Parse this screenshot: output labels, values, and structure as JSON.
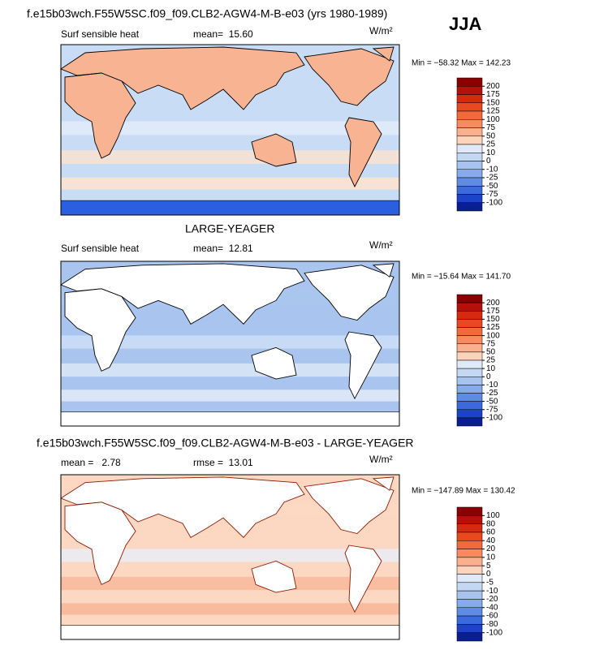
{
  "header": {
    "season": "JJA"
  },
  "panels": [
    {
      "title": "f.e15b03wch.F55W5SC.f09_f09.CLB2-AGW4-M-B-e03 (yrs 1980-1989)",
      "variable": "Surf sensible heat",
      "stat1": "mean=  15.60",
      "units": "W/m²",
      "range": "Min = −58.32 Max = 142.23",
      "levels": [
        200,
        175,
        150,
        125,
        100,
        75,
        50,
        25,
        10,
        0,
        -10,
        -25,
        -50,
        -75,
        -100
      ],
      "colors": [
        "#8b0000",
        "#b5100a",
        "#d42a12",
        "#e8491f",
        "#f26a3c",
        "#f78b60",
        "#fab08c",
        "#fdd3ba",
        "#dfe9f8",
        "#c5d8f3",
        "#a8c4ee",
        "#86aaea",
        "#5f8be5",
        "#3a6add",
        "#1c43c8",
        "#0a1f8f"
      ]
    },
    {
      "title": "LARGE-YEAGER",
      "variable": "Surf sensible heat",
      "stat1": "mean=  12.81",
      "units": "W/m²",
      "range": "Min = −15.64 Max = 141.70",
      "levels": [
        200,
        175,
        150,
        125,
        100,
        75,
        50,
        25,
        10,
        0,
        -10,
        -25,
        -50,
        -75,
        -100
      ],
      "colors": [
        "#8b0000",
        "#b5100a",
        "#d42a12",
        "#e8491f",
        "#f26a3c",
        "#f78b60",
        "#fab08c",
        "#fdd3ba",
        "#dfe9f8",
        "#c5d8f3",
        "#a8c4ee",
        "#86aaea",
        "#5f8be5",
        "#3a6add",
        "#1c43c8",
        "#0a1f8f"
      ]
    },
    {
      "title": "f.e15b03wch.F55W5SC.f09_f09.CLB2-AGW4-M-B-e03 - LARGE-YEAGER",
      "stat1": "mean =   2.78",
      "stat2": "rmse =  13.01",
      "units": "W/m²",
      "range": "Min = −147.89 Max = 130.42",
      "levels": [
        100,
        80,
        60,
        40,
        20,
        10,
        5,
        0,
        -5,
        -10,
        -20,
        -40,
        -60,
        -80,
        -100
      ],
      "colors": [
        "#8b0000",
        "#b5100a",
        "#d42a12",
        "#e8491f",
        "#f26a3c",
        "#f78b60",
        "#fab08c",
        "#fdd3ba",
        "#dfe9f8",
        "#c5d8f3",
        "#a8c4ee",
        "#86aaea",
        "#5f8be5",
        "#3a6add",
        "#1c43c8",
        "#0a1f8f"
      ]
    }
  ]
}
